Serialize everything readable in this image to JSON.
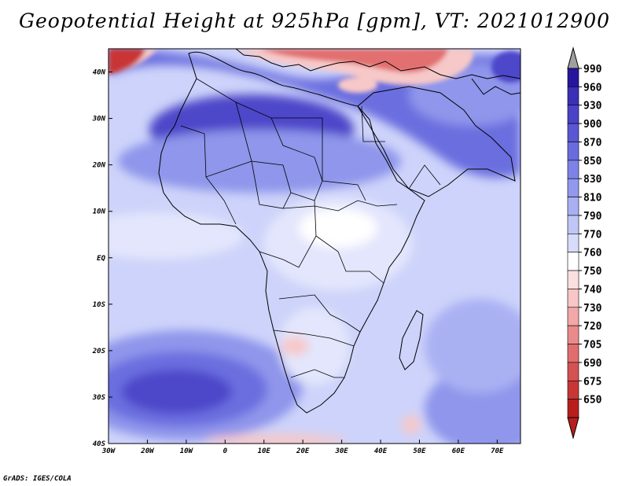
{
  "title": "Geopotential Height at 925hPa [gpm], VT: 2021012900",
  "credit": "GrADS: IGES/COLA",
  "map": {
    "region": "Africa",
    "lon_range": [
      -30,
      76
    ],
    "lat_range": [
      -40,
      45
    ],
    "lon_ticks": [
      "30W",
      "20W",
      "10W",
      "0",
      "10E",
      "20E",
      "30E",
      "40E",
      "50E",
      "60E",
      "70E"
    ],
    "lat_ticks": [
      "40N",
      "30N",
      "20N",
      "10N",
      "EQ",
      "10S",
      "20S",
      "30S",
      "40S"
    ]
  },
  "colorbar": {
    "labels": [
      "990",
      "960",
      "930",
      "900",
      "870",
      "850",
      "830",
      "810",
      "790",
      "770",
      "760",
      "750",
      "740",
      "730",
      "720",
      "705",
      "690",
      "675",
      "650"
    ],
    "colors": [
      "#26169e",
      "#3a2fb6",
      "#4a43c8",
      "#5a57d4",
      "#6a6cde",
      "#7d82e6",
      "#9298ec",
      "#a9b0f2",
      "#c0c7f7",
      "#d7dcfb",
      "#ffffff",
      "#fce0e0",
      "#f8c6c6",
      "#f2a8a8",
      "#ea8a8a",
      "#e06e6e",
      "#d55252",
      "#c93636",
      "#b81e1e"
    ],
    "top_arrow_color": "#a0a0a0",
    "bottom_arrow_color": "#b81e1e"
  },
  "field_colors": {
    "background": "#cdd3fa",
    "strong_high": "#4d47c9",
    "high": "#6b6edf",
    "mid_high": "#8f96eb",
    "moderate": "#aab1f3",
    "low": "#e3e6fc",
    "neutral": "#ffffff",
    "low_pink": "#f7c8c8",
    "low_red": "#e27070",
    "deep_red": "#c93636"
  }
}
